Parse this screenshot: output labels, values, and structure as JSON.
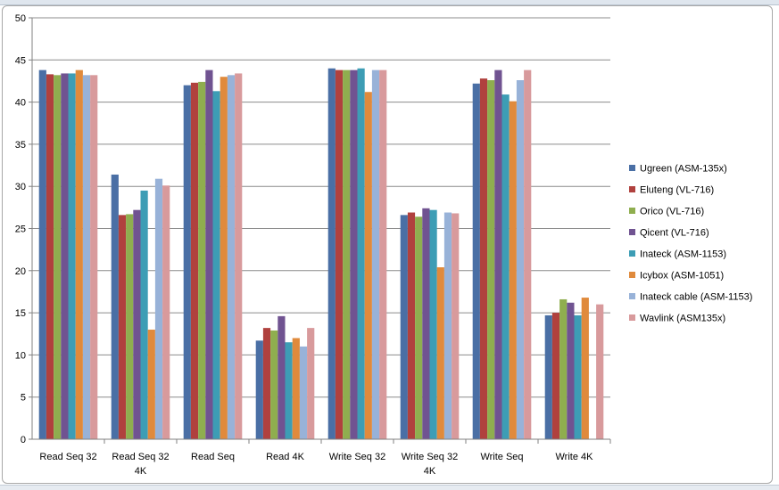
{
  "chart_data": {
    "type": "bar",
    "title": "",
    "xlabel": "",
    "ylabel": "",
    "ylim": [
      0,
      50
    ],
    "yticks": [
      0,
      5,
      10,
      15,
      20,
      25,
      30,
      35,
      40,
      45,
      50
    ],
    "grid": true,
    "legend_position": "right",
    "categories": [
      [
        "Read Seq 32"
      ],
      [
        "Read Seq 32",
        "4K"
      ],
      [
        "Read Seq"
      ],
      [
        "Read 4K"
      ],
      [
        "Write Seq 32"
      ],
      [
        "Write Seq 32",
        "4K"
      ],
      [
        "Write Seq"
      ],
      [
        "Write 4K"
      ]
    ],
    "series": [
      {
        "name": "Ugreen (ASM-135x)",
        "color": "#4a6fa5",
        "values": [
          43.8,
          31.4,
          42.0,
          11.7,
          44.0,
          26.6,
          42.2,
          14.7
        ]
      },
      {
        "name": "Eluteng (VL-716)",
        "color": "#b0413e",
        "values": [
          43.3,
          26.6,
          42.3,
          13.2,
          43.8,
          26.9,
          42.8,
          15.0
        ]
      },
      {
        "name": "Orico (VL-716)",
        "color": "#8fae4f",
        "values": [
          43.2,
          26.7,
          42.4,
          12.9,
          43.8,
          26.4,
          42.6,
          16.6
        ]
      },
      {
        "name": "Qicent (VL-716)",
        "color": "#705391",
        "values": [
          43.4,
          27.2,
          43.8,
          14.6,
          43.8,
          27.4,
          43.8,
          16.2
        ]
      },
      {
        "name": "Inateck (ASM-1153)",
        "color": "#3d9db5",
        "values": [
          43.4,
          29.5,
          41.3,
          11.5,
          44.0,
          27.2,
          40.9,
          14.7
        ]
      },
      {
        "name": "Icybox (ASM-1051)",
        "color": "#e08a3c",
        "values": [
          43.8,
          13.0,
          43.0,
          12.0,
          41.2,
          20.4,
          40.1,
          16.8
        ]
      },
      {
        "name": "Inateck cable (ASM-1153)",
        "color": "#98b2d8",
        "values": [
          43.2,
          30.9,
          43.2,
          11.0,
          43.8,
          26.9,
          42.6,
          null
        ]
      },
      {
        "name": "Wavlink (ASM135x)",
        "color": "#d89a9c",
        "values": [
          43.2,
          30.1,
          43.4,
          13.2,
          43.8,
          26.8,
          43.8,
          16.0
        ]
      }
    ]
  }
}
